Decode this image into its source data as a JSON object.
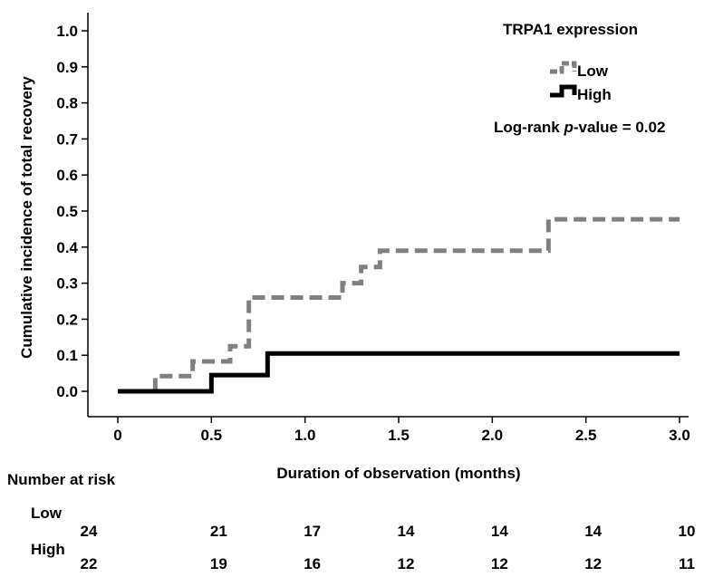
{
  "chart_data": {
    "type": "line",
    "subtype": "step",
    "xlabel": "Duration of observation (months)",
    "ylabel": "Cumulative incidence of total recovery",
    "xlim": [
      0,
      3
    ],
    "ylim": [
      0,
      1.0
    ],
    "x_ticks": [
      "0",
      "0.5",
      "1.0",
      "1.5",
      "2.0",
      "2.5",
      "3.0"
    ],
    "x_tick_values": [
      0,
      0.5,
      1.0,
      1.5,
      2.0,
      2.5,
      3.0
    ],
    "y_ticks": [
      "0.0",
      "0.1",
      "0.2",
      "0.3",
      "0.4",
      "0.5",
      "0.6",
      "0.7",
      "0.8",
      "0.9",
      "1.0"
    ],
    "y_tick_values": [
      0,
      0.1,
      0.2,
      0.3,
      0.4,
      0.5,
      0.6,
      0.7,
      0.8,
      0.9,
      1.0
    ],
    "grid": false,
    "legend": {
      "title": "TRPA1 expression",
      "position": "top-right"
    },
    "annotation": {
      "prefix": "Log-rank ",
      "italic": "p",
      "suffix": "-value = 0.02"
    },
    "series": [
      {
        "name": "Low",
        "color": "#808080",
        "dash": true,
        "steps": [
          [
            0.2,
            0.042
          ],
          [
            0.4,
            0.083
          ],
          [
            0.6,
            0.125
          ],
          [
            0.7,
            0.26
          ],
          [
            1.2,
            0.3
          ],
          [
            1.3,
            0.345
          ],
          [
            1.4,
            0.39
          ],
          [
            2.3,
            0.477
          ]
        ],
        "x_end": 3.0
      },
      {
        "name": "High",
        "color": "#000000",
        "dash": false,
        "steps": [
          [
            0.5,
            0.045
          ],
          [
            0.8,
            0.105
          ]
        ],
        "x_end": 3.0
      }
    ]
  },
  "risk_table": {
    "title": "Number at risk",
    "groups": [
      {
        "label": "Low",
        "values": [
          "24",
          "21",
          "17",
          "14",
          "14",
          "14",
          "10"
        ]
      },
      {
        "label": "High",
        "values": [
          "22",
          "19",
          "16",
          "12",
          "12",
          "12",
          "11"
        ]
      }
    ]
  }
}
